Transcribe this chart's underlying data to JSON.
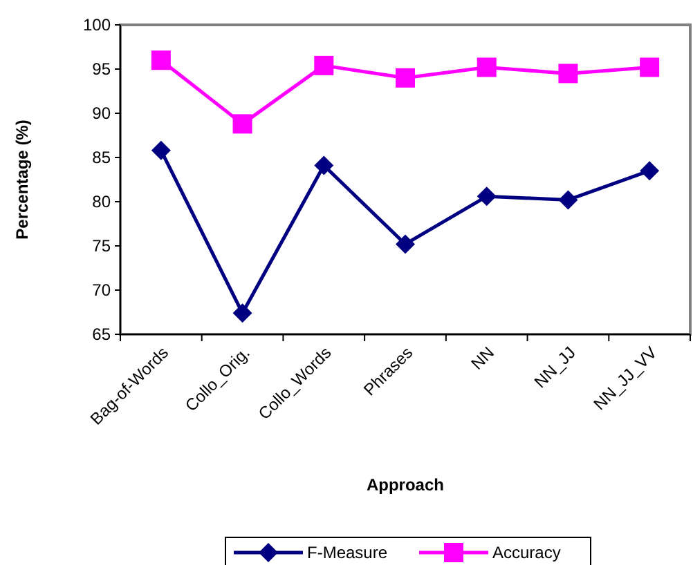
{
  "chart_data": {
    "type": "line",
    "xlabel": "Approach",
    "ylabel": "Percentage (%)",
    "categories": [
      "Bag-of-Words",
      "Collo_Orig.",
      "Collo_Words",
      "Phrases",
      "NN",
      "NN_JJ",
      "NN_JJ_VV"
    ],
    "series": [
      {
        "name": "F-Measure",
        "color": "#000080",
        "marker": "diamond",
        "values": [
          85.8,
          67.4,
          84.1,
          75.2,
          80.6,
          80.2,
          83.5
        ]
      },
      {
        "name": "Accuracy",
        "color": "#ff00ff",
        "marker": "square",
        "values": [
          96,
          88.8,
          95.4,
          94.0,
          95.2,
          94.5,
          95.2
        ]
      }
    ],
    "ylim": [
      65,
      100
    ],
    "yticks": [
      65,
      70,
      75,
      80,
      85,
      90,
      95,
      100
    ],
    "grid": false,
    "legend": "bottom",
    "line_style": "solid"
  }
}
